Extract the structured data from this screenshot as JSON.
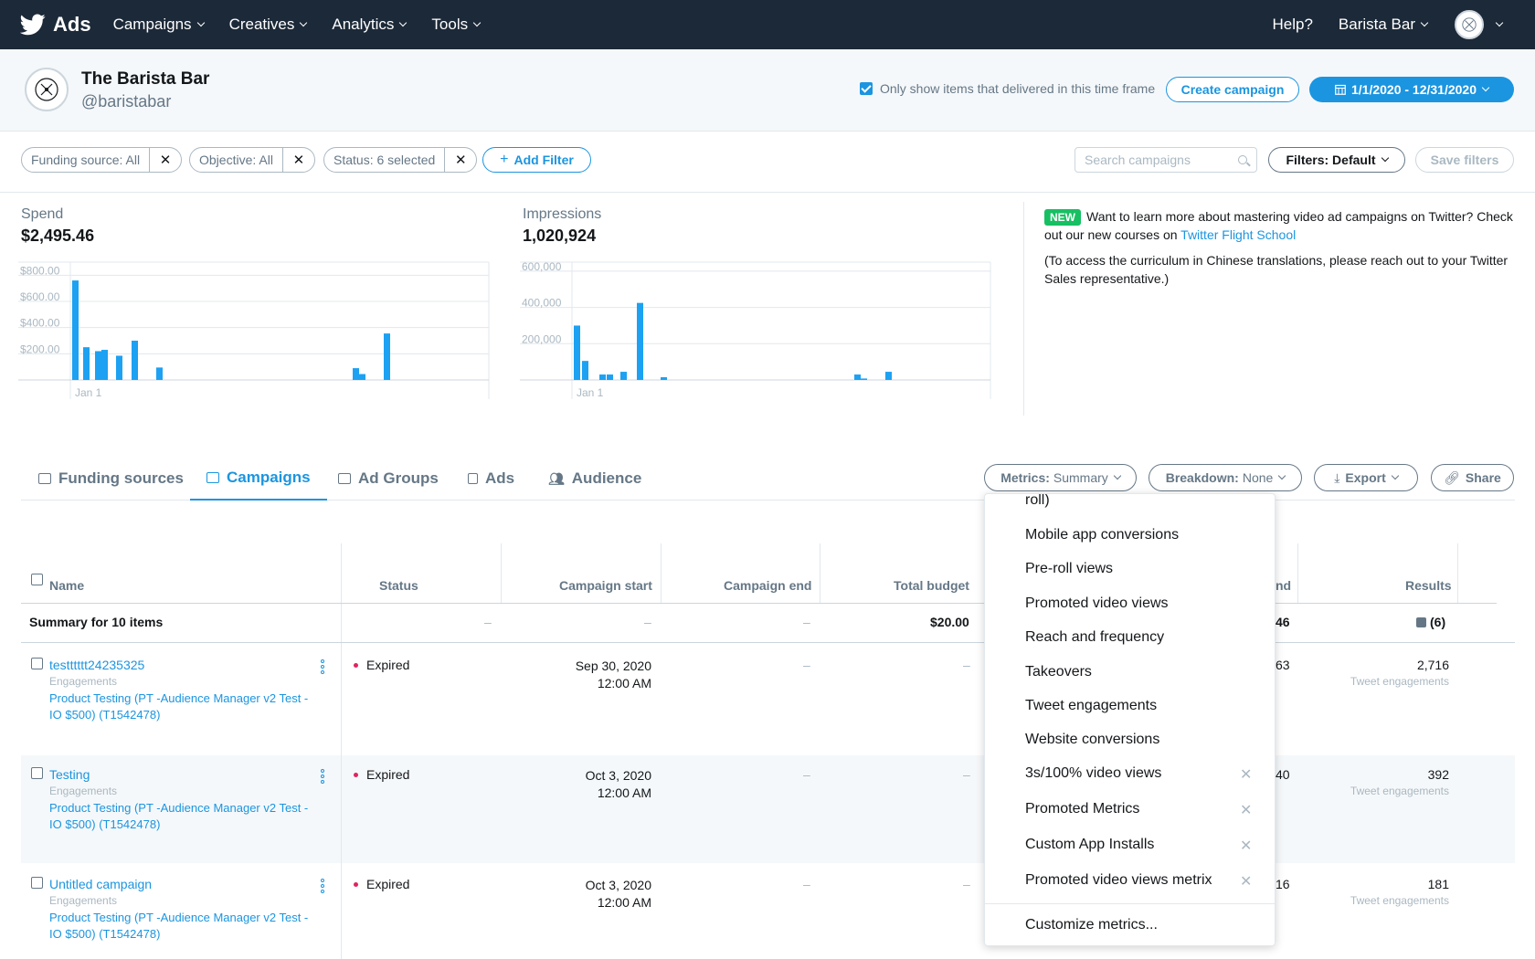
{
  "topnav": {
    "brand": "Ads",
    "menu": [
      "Campaigns",
      "Creatives",
      "Analytics",
      "Tools"
    ],
    "help": "Help?",
    "account": "Barista Bar"
  },
  "account": {
    "name": "The Barista Bar",
    "handle": "@baristabar",
    "delivered_only": "Only show items that delivered in this time frame",
    "create_campaign": "Create campaign",
    "date_range": "1/1/2020 - 12/31/2020"
  },
  "filters": {
    "pills": [
      "Funding source: All",
      "Objective: All",
      "Status: 6 selected"
    ],
    "add_filter": "Add Filter",
    "search_placeholder": "Search campaigns",
    "filters_default": "Filters: Default",
    "save_filters": "Save filters"
  },
  "charts": {
    "spend": {
      "label": "Spend",
      "value": "$2,495.46"
    },
    "impressions": {
      "label": "Impressions",
      "value": "1,020,924"
    }
  },
  "chart_data": [
    {
      "type": "bar",
      "title": "Spend",
      "xlabel": "",
      "ylabel": "",
      "x_tick": "Jan 1",
      "yticks": [
        "$200.00",
        "$400.00",
        "$600.00",
        "$800.00"
      ],
      "ylim": [
        0,
        900
      ],
      "values": [
        760,
        250,
        220,
        230,
        185,
        300,
        95,
        90,
        45,
        355
      ]
    },
    {
      "type": "bar",
      "title": "Impressions",
      "xlabel": "",
      "ylabel": "",
      "x_tick": "Jan 1",
      "yticks": [
        "200,000",
        "400,000",
        "600,000"
      ],
      "ylim": [
        0,
        650000
      ],
      "values": [
        300000,
        105000,
        30000,
        30000,
        45000,
        425000,
        15000,
        30000,
        8000,
        45000
      ]
    }
  ],
  "promo": {
    "badge": "NEW",
    "text": "Want to learn more about mastering video ad campaigns on Twitter? Check out our new courses on ",
    "link": "Twitter Flight School",
    "note": "(To access the curriculum in Chinese translations, please reach out to your Twitter Sales representative.)"
  },
  "tabs": [
    "Funding sources",
    "Campaigns",
    "Ad Groups",
    "Ads",
    "Audience"
  ],
  "toolbar": {
    "metrics_label": "Metrics:",
    "metrics_value": "Summary",
    "breakdown_label": "Breakdown:",
    "breakdown_value": "None",
    "export": "Export",
    "share": "Share"
  },
  "table": {
    "headers": [
      "Name",
      "Status",
      "Campaign start",
      "Campaign end",
      "Total budget",
      "nd",
      "Results"
    ],
    "summary": {
      "label": "Summary for 10 items",
      "status": "–",
      "start": "–",
      "end": "–",
      "budget": "$20.00",
      "spend": "46",
      "results": "(6)"
    },
    "rows": [
      {
        "name": "testttttt24235325",
        "objective": "Engagements",
        "funding": "Product Testing (PT -Audience Manager v2 Test - IO $500) (T1542478)",
        "status": "Expired",
        "start_date": "Sep 30, 2020",
        "start_time": "12:00 AM",
        "end": "–",
        "budget": "–",
        "spend": "63",
        "results": "2,716",
        "results_sub": "Tweet engagements"
      },
      {
        "name": "Testing",
        "objective": "Engagements",
        "funding": "Product Testing (PT -Audience Manager v2 Test - IO $500) (T1542478)",
        "status": "Expired",
        "start_date": "Oct 3, 2020",
        "start_time": "12:00 AM",
        "end": "–",
        "budget": "–",
        "spend": "40",
        "results": "392",
        "results_sub": "Tweet engagements"
      },
      {
        "name": "Untitled campaign",
        "objective": "Engagements",
        "funding": "Product Testing (PT -Audience Manager v2 Test - IO $500) (T1542478)",
        "status": "Expired",
        "start_date": "Oct 3, 2020",
        "start_time": "12:00 AM",
        "end": "–",
        "budget": "–",
        "spend": "16",
        "results": "181",
        "results_sub": "Tweet engagements"
      }
    ]
  },
  "metrics_dropdown": {
    "partial_top": "roll)",
    "items": [
      "Mobile app conversions",
      "Pre-roll views",
      "Promoted video views",
      "Reach and frequency",
      "Takeovers",
      "Tweet engagements",
      "Website conversions"
    ],
    "custom_items": [
      "3s/100% video views",
      "Promoted Metrics",
      "Custom App Installs",
      "Promoted video views metrix"
    ],
    "customize": "Customize metrics..."
  },
  "colors": {
    "nav_bg": "#1c2938",
    "accent": "#1b95e0",
    "new_badge": "#17bf63",
    "status_expired": "#e0245e"
  }
}
